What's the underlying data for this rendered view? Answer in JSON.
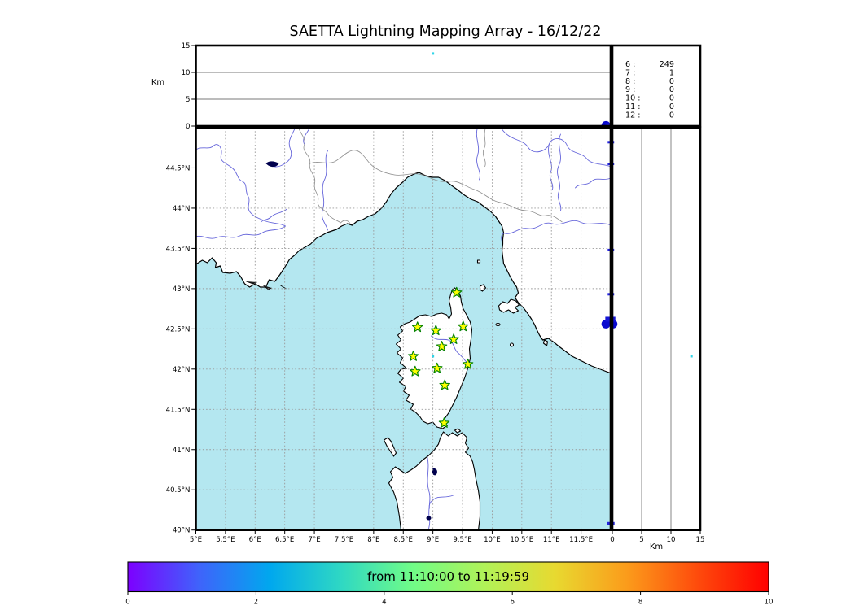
{
  "title": "SAETTA Lightning Mapping Array - 16/12/22",
  "colors": {
    "sea": "#b4e7f0",
    "land": "#ffffff",
    "river": "#6565da",
    "admin": "#8c8c8c",
    "coast": "#000000",
    "grid": "#9a9a9a",
    "lake": "#00004d",
    "highlight": "#ff0000"
  },
  "altitude_axis": {
    "label": "Km",
    "range": [
      0,
      15
    ],
    "ticks": [
      {
        "v": 0,
        "label": "0"
      },
      {
        "v": 5,
        "label": "5"
      },
      {
        "v": 10,
        "label": "10"
      },
      {
        "v": 15,
        "label": "15"
      }
    ],
    "gridlines": [
      5,
      10
    ]
  },
  "map": {
    "lon_range": [
      5,
      12
    ],
    "lat_range": [
      40,
      45
    ],
    "lon_ticks": [
      {
        "v": 5,
        "label": "5°E"
      },
      {
        "v": 5.5,
        "label": "5.5°E"
      },
      {
        "v": 6,
        "label": "6°E"
      },
      {
        "v": 6.5,
        "label": "6.5°E"
      },
      {
        "v": 7,
        "label": "7°E"
      },
      {
        "v": 7.5,
        "label": "7.5°E"
      },
      {
        "v": 8,
        "label": "8°E"
      },
      {
        "v": 8.5,
        "label": "8.5°E"
      },
      {
        "v": 9,
        "label": "9°E"
      },
      {
        "v": 9.5,
        "label": "9.5°E"
      },
      {
        "v": 10,
        "label": "10°E"
      },
      {
        "v": 10.5,
        "label": "10.5°E"
      },
      {
        "v": 11,
        "label": "11°E"
      },
      {
        "v": 11.5,
        "label": "11.5°E"
      }
    ],
    "lat_ticks": [
      {
        "v": 44.5,
        "label": "44.5°N"
      },
      {
        "v": 44,
        "label": "44°N"
      },
      {
        "v": 43.5,
        "label": "43.5°N"
      },
      {
        "v": 43,
        "label": "43°N"
      },
      {
        "v": 42.5,
        "label": "42.5°N"
      },
      {
        "v": 42,
        "label": "42°N"
      },
      {
        "v": 41.5,
        "label": "41.5°N"
      },
      {
        "v": 41,
        "label": "41°N"
      },
      {
        "v": 40.5,
        "label": "40.5°N"
      },
      {
        "v": 40,
        "label": "40°N"
      }
    ]
  },
  "station_count_panel": {
    "rows": [
      {
        "stations": "6",
        "count": "249",
        "highlight": false
      },
      {
        "stations": "7",
        "count": "1",
        "highlight": true
      },
      {
        "stations": "8",
        "count": "0",
        "highlight": false
      },
      {
        "stations": "9",
        "count": "0",
        "highlight": false
      },
      {
        "stations": "10",
        "count": "0",
        "highlight": false
      },
      {
        "stations": "11",
        "count": "0",
        "highlight": false
      },
      {
        "stations": "12",
        "count": "0",
        "highlight": false
      }
    ]
  },
  "colorbar": {
    "label": "from 11:10:00 to 11:19:59",
    "range": [
      0,
      10
    ],
    "ticks": [
      {
        "v": 0,
        "label": "0"
      },
      {
        "v": 2,
        "label": "2"
      },
      {
        "v": 4,
        "label": "4"
      },
      {
        "v": 6,
        "label": "6"
      },
      {
        "v": 8,
        "label": "8"
      },
      {
        "v": 10,
        "label": "10"
      }
    ],
    "gradient": [
      "#7d00ff",
      "#3f63fb",
      "#00a8ee",
      "#2fd8c3",
      "#70fc87",
      "#b0f258",
      "#e8d930",
      "#fb9c1b",
      "#fe4b0c",
      "#ff0000"
    ]
  },
  "chart_data": {
    "type": "scatter",
    "panels": {
      "top": "altitude (km) vs longitude",
      "main": "map longitude vs latitude",
      "right": "altitude (km) vs latitude"
    },
    "stations": {
      "marker": "star",
      "fill": "#ffff00",
      "edge": "#008000",
      "points": [
        {
          "lon": 9.4,
          "lat": 42.95
        },
        {
          "lon": 8.74,
          "lat": 42.52
        },
        {
          "lon": 9.05,
          "lat": 42.48
        },
        {
          "lon": 9.51,
          "lat": 42.53
        },
        {
          "lon": 9.35,
          "lat": 42.37
        },
        {
          "lon": 9.15,
          "lat": 42.28
        },
        {
          "lon": 8.67,
          "lat": 42.16
        },
        {
          "lon": 9.59,
          "lat": 42.06
        },
        {
          "lon": 9.07,
          "lat": 42.01
        },
        {
          "lon": 8.7,
          "lat": 41.97
        },
        {
          "lon": 9.2,
          "lat": 41.8
        },
        {
          "lon": 9.19,
          "lat": 41.33
        }
      ]
    },
    "sources": [
      {
        "lon": 9.0,
        "lat": 42.16,
        "alt_km": 13.5,
        "color": "#30d5e8",
        "size": 3
      },
      {
        "lon": 11.92,
        "lat": 42.56,
        "alt_km": 0.1,
        "color": "#0909cf",
        "size": 11
      },
      {
        "lon": 11.95,
        "lat": 42.62,
        "alt_km": 0.1,
        "color": "#1515d5",
        "size": 6
      },
      {
        "lon": 11.97,
        "lat": 44.82,
        "alt_km": 0.1,
        "color": "#2222dd",
        "size": 3
      },
      {
        "lon": 11.97,
        "lat": 44.55,
        "alt_km": 0.1,
        "color": "#2222dd",
        "size": 3
      },
      {
        "lon": 11.97,
        "lat": 43.48,
        "alt_km": 0.1,
        "color": "#2222dd",
        "size": 3
      },
      {
        "lon": 11.97,
        "lat": 42.93,
        "alt_km": 0.1,
        "color": "#2222dd",
        "size": 3
      },
      {
        "lon": 11.97,
        "lat": 40.08,
        "alt_km": 0.1,
        "color": "#2222dd",
        "size": 4
      }
    ]
  }
}
